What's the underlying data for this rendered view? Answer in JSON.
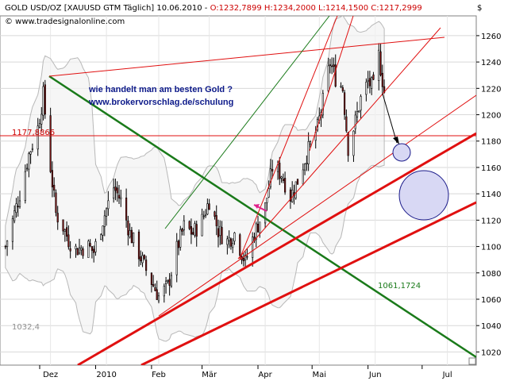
{
  "header": {
    "title_prefix": "GOLD USD/OZ [XAUUSD GTM  Täglich] 10.06.2010 - ",
    "ohlc": "O:1232,7899 H:1234,2000 L:1214,1500 C:1217,2999",
    "source": "© www.tradesignalonline.com",
    "currency_symbol": "$"
  },
  "annotations": {
    "line1": "wie handelt man am besten Gold ?",
    "line2": "www.brokervorschlag.de/schulung",
    "level_red": "1177,8866",
    "level_green": "1061,1724",
    "level_gray": "1032,4"
  },
  "colors": {
    "candle_up": "#ffffff",
    "candle_down": "#8b1a1a",
    "trend_green": "#1a7a1a",
    "trend_red": "#e01010",
    "band": "#b8b8b8",
    "circle_fill": "#d8d8f4",
    "circle_stroke": "#1a1a8a"
  },
  "chart_data": {
    "type": "candlestick",
    "title": "GOLD USD/OZ [XAUUSD GTM  Täglich] 10.06.2010",
    "x_tick_labels": [
      "Dez",
      "2010",
      "Feb",
      "Mär",
      "Apr",
      "Mai",
      "Jun",
      "Jul"
    ],
    "y_ticks": [
      1020,
      1040,
      1060,
      1080,
      1100,
      1120,
      1140,
      1160,
      1180,
      1200,
      1220,
      1240,
      1260
    ],
    "ylim": [
      1010,
      1275
    ],
    "y_axis_side": "right",
    "grid": true,
    "approx_close_path": [
      {
        "date": "2009-11-12",
        "close": 1100
      },
      {
        "date": "2009-11-16",
        "close": 1120
      },
      {
        "date": "2009-11-20",
        "close": 1140
      },
      {
        "date": "2009-11-25",
        "close": 1170
      },
      {
        "date": "2009-11-30",
        "close": 1190
      },
      {
        "date": "2009-12-03",
        "close": 1215
      },
      {
        "date": "2009-12-07",
        "close": 1160
      },
      {
        "date": "2009-12-10",
        "close": 1125
      },
      {
        "date": "2009-12-14",
        "close": 1115
      },
      {
        "date": "2009-12-17",
        "close": 1105
      },
      {
        "date": "2009-12-21",
        "close": 1098
      },
      {
        "date": "2009-12-28",
        "close": 1100
      },
      {
        "date": "2009-12-31",
        "close": 1096
      },
      {
        "date": "2010-01-05",
        "close": 1120
      },
      {
        "date": "2010-01-11",
        "close": 1145
      },
      {
        "date": "2010-01-15",
        "close": 1135
      },
      {
        "date": "2010-01-20",
        "close": 1110
      },
      {
        "date": "2010-01-25",
        "close": 1095
      },
      {
        "date": "2010-01-29",
        "close": 1082
      },
      {
        "date": "2010-02-05",
        "close": 1062
      },
      {
        "date": "2010-02-10",
        "close": 1070
      },
      {
        "date": "2010-02-15",
        "close": 1098
      },
      {
        "date": "2010-02-19",
        "close": 1115
      },
      {
        "date": "2010-02-24",
        "close": 1110
      },
      {
        "date": "2010-03-01",
        "close": 1120
      },
      {
        "date": "2010-03-05",
        "close": 1135
      },
      {
        "date": "2010-03-10",
        "close": 1112
      },
      {
        "date": "2010-03-15",
        "close": 1104
      },
      {
        "date": "2010-03-19",
        "close": 1110
      },
      {
        "date": "2010-03-25",
        "close": 1088
      },
      {
        "date": "2010-03-30",
        "close": 1110
      },
      {
        "date": "2010-04-05",
        "close": 1130
      },
      {
        "date": "2010-04-09",
        "close": 1160
      },
      {
        "date": "2010-04-14",
        "close": 1155
      },
      {
        "date": "2010-04-19",
        "close": 1138
      },
      {
        "date": "2010-04-23",
        "close": 1150
      },
      {
        "date": "2010-04-28",
        "close": 1170
      },
      {
        "date": "2010-05-04",
        "close": 1190
      },
      {
        "date": "2010-05-07",
        "close": 1210
      },
      {
        "date": "2010-05-11",
        "close": 1240
      },
      {
        "date": "2010-05-14",
        "close": 1228
      },
      {
        "date": "2010-05-18",
        "close": 1220
      },
      {
        "date": "2010-05-21",
        "close": 1175
      },
      {
        "date": "2010-05-25",
        "close": 1195
      },
      {
        "date": "2010-05-28",
        "close": 1212
      },
      {
        "date": "2010-06-01",
        "close": 1225
      },
      {
        "date": "2010-06-04",
        "close": 1220
      },
      {
        "date": "2010-06-07",
        "close": 1245
      },
      {
        "date": "2010-06-10",
        "close": 1217.3
      }
    ]
  }
}
